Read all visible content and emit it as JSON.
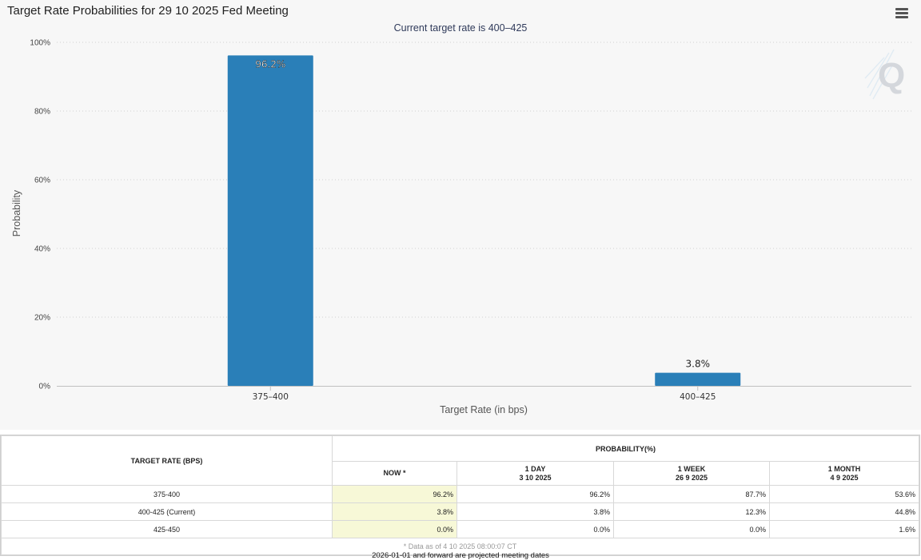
{
  "chart": {
    "title": "Target Rate Probabilities for 29 10 2025 Fed Meeting",
    "subtitle": "Current target rate is 400–425",
    "menu_icon": "hamburger-menu-icon",
    "watermark_icon": "q-logo-icon",
    "bar_color": "#2a7fb8"
  },
  "chart_data": {
    "type": "bar",
    "title": "Target Rate Probabilities for 29 10 2025 Fed Meeting",
    "subtitle": "Current target rate is 400–425",
    "categories": [
      "375–400",
      "400–425"
    ],
    "values": [
      96.2,
      3.8
    ],
    "data_labels": [
      "96.2%",
      "3.8%"
    ],
    "xlabel": "Target Rate (in bps)",
    "ylabel": "Probability",
    "ylim": [
      0,
      100
    ],
    "yticks": [
      "0%",
      "20%",
      "40%",
      "60%",
      "80%",
      "100%"
    ],
    "grid": true
  },
  "table": {
    "rate_header": "TARGET RATE (BPS)",
    "prob_header": "PROBABILITY(%)",
    "columns": [
      {
        "line1": "NOW *",
        "line2": ""
      },
      {
        "line1": "1 DAY",
        "line2": "3 10 2025"
      },
      {
        "line1": "1 WEEK",
        "line2": "26 9 2025"
      },
      {
        "line1": "1 MONTH",
        "line2": "4 9 2025"
      }
    ],
    "rows": [
      {
        "rate": "375-400",
        "values": [
          "96.2%",
          "96.2%",
          "87.7%",
          "53.6%"
        ]
      },
      {
        "rate": "400-425 (Current)",
        "values": [
          "3.8%",
          "3.8%",
          "12.3%",
          "44.8%"
        ]
      },
      {
        "rate": "425-450",
        "values": [
          "0.0%",
          "0.0%",
          "0.0%",
          "1.6%"
        ]
      }
    ],
    "footnote": "* Data as of 4 10 2025 08:00:07 CT"
  },
  "bottom_note": "2026-01-01 and forward are projected meeting dates"
}
